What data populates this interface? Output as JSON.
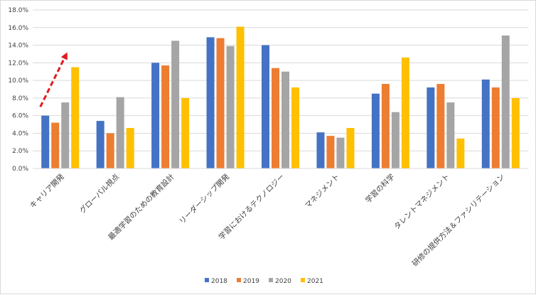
{
  "chart_data": {
    "type": "bar",
    "categories": [
      "キャリア開発",
      "グローバル視点",
      "最適学習のための教育設計",
      "リーダーシップ開発",
      "学習におけるテクノロジー",
      "マネジメント",
      "学習の科学",
      "タレントマネジメント",
      "研修の提供方法＆ファシリテーション"
    ],
    "series": [
      {
        "name": "2018",
        "color": "#4472c4",
        "values": [
          6.0,
          5.4,
          12.0,
          14.9,
          14.0,
          4.1,
          8.5,
          9.2,
          10.1
        ]
      },
      {
        "name": "2019",
        "color": "#ed7d31",
        "values": [
          5.2,
          4.0,
          11.7,
          14.8,
          11.4,
          3.7,
          9.6,
          9.6,
          9.2
        ]
      },
      {
        "name": "2020",
        "color": "#a5a5a5",
        "values": [
          7.5,
          8.1,
          14.5,
          13.9,
          11.0,
          3.5,
          6.4,
          7.5,
          15.1
        ]
      },
      {
        "name": "2021",
        "color": "#ffc000",
        "values": [
          11.5,
          4.6,
          8.0,
          16.1,
          9.2,
          4.6,
          12.6,
          3.4,
          8.0
        ]
      }
    ],
    "ylim": [
      0,
      18
    ],
    "yticks": [
      "0.0%",
      "2.0%",
      "4.0%",
      "6.0%",
      "8.0%",
      "10.0%",
      "12.0%",
      "14.0%",
      "16.0%",
      "18.0%"
    ],
    "ytick_values": [
      0,
      2,
      4,
      6,
      8,
      10,
      12,
      14,
      16,
      18
    ],
    "grid": true,
    "legend_position": "bottom",
    "annotation": {
      "type": "dashed-arrow",
      "color": "#e31a1c",
      "from": [
        0,
        7.0
      ],
      "to": [
        0.75,
        13.2
      ]
    }
  }
}
